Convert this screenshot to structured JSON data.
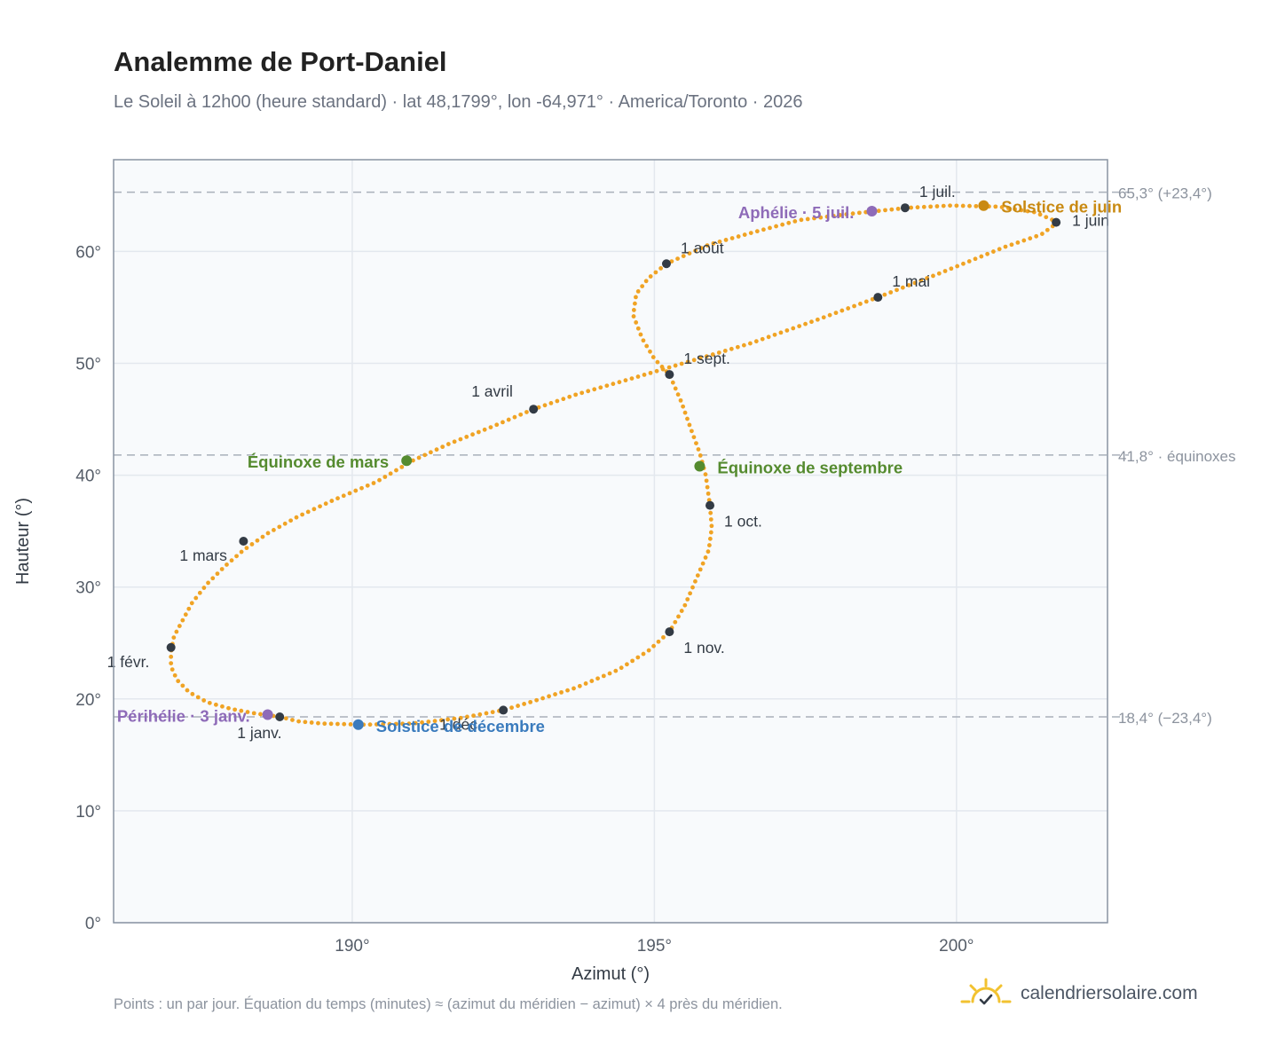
{
  "header": {
    "title": "Analemme de Port-Daniel",
    "subtitle": "Le Soleil à 12h00 (heure standard) · lat 48,1799°, lon -64,971° · America/Toronto · 2026"
  },
  "footer": {
    "note": "Points : un par jour. Équation du temps (minutes) ≈ (azimut du méridien − azimut) × 4 près du méridien.",
    "brand": "calendriersolaire.com"
  },
  "colors": {
    "path": "#f0a324",
    "month": "#333b45",
    "solstice_june": "#c98a12",
    "solstice_december": "#3a7bbd",
    "equinox": "#558b2f",
    "apsis": "#8e6bb8",
    "reference": "#a9b0ba",
    "plot_bg": "#f8fafc",
    "frame": "#8893a2",
    "grid": "#e3e8ee"
  },
  "chart_data": {
    "type": "scatter",
    "xlabel": "Azimut (°)",
    "ylabel": "Hauteur (°)",
    "xlim": [
      186.05,
      202.5
    ],
    "ylim": [
      0,
      68.2
    ],
    "x_ticks": [
      {
        "value": 190,
        "label": "190°"
      },
      {
        "value": 195,
        "label": "195°"
      },
      {
        "value": 200,
        "label": "200°"
      }
    ],
    "y_ticks": [
      {
        "value": 0,
        "label": "0°"
      },
      {
        "value": 10,
        "label": "10°"
      },
      {
        "value": 20,
        "label": "20°"
      },
      {
        "value": 30,
        "label": "30°"
      },
      {
        "value": 40,
        "label": "40°"
      },
      {
        "value": 50,
        "label": "50°"
      },
      {
        "value": 60,
        "label": "60°"
      }
    ],
    "grid": true,
    "reference_lines": [
      {
        "y": 65.3,
        "label": "65,3° (+23,4°)"
      },
      {
        "y": 41.8,
        "label": "41,8° · équinoxes"
      },
      {
        "y": 18.4,
        "label": "18,4° (−23,4°)"
      }
    ],
    "path_points": [
      [
        188.8,
        18.4
      ],
      [
        188.4,
        18.7
      ],
      [
        188.0,
        19.1
      ],
      [
        187.6,
        19.7
      ],
      [
        187.3,
        20.6
      ],
      [
        187.1,
        21.7
      ],
      [
        187.0,
        22.9
      ],
      [
        187.0,
        24.2
      ],
      [
        187.05,
        25.6
      ],
      [
        187.2,
        27.1
      ],
      [
        187.35,
        28.6
      ],
      [
        187.6,
        30.3
      ],
      [
        187.9,
        31.9
      ],
      [
        188.2,
        33.3
      ],
      [
        188.6,
        34.8
      ],
      [
        189.1,
        36.3
      ],
      [
        189.7,
        37.8
      ],
      [
        190.4,
        39.4
      ],
      [
        191.0,
        41.3
      ],
      [
        191.6,
        42.8
      ],
      [
        192.3,
        44.3
      ],
      [
        193.0,
        45.9
      ],
      [
        193.7,
        47.2
      ],
      [
        194.6,
        48.6
      ],
      [
        195.6,
        50.2
      ],
      [
        196.6,
        51.8
      ],
      [
        197.7,
        53.9
      ],
      [
        198.7,
        55.9
      ],
      [
        199.7,
        58.0
      ],
      [
        200.8,
        60.4
      ],
      [
        201.4,
        61.5
      ],
      [
        201.68,
        62.6
      ],
      [
        201.3,
        63.5
      ],
      [
        200.7,
        64.0
      ],
      [
        199.9,
        64.1
      ],
      [
        199.2,
        63.9
      ],
      [
        198.3,
        63.4
      ],
      [
        197.4,
        62.8
      ],
      [
        196.7,
        61.8
      ],
      [
        195.9,
        60.6
      ],
      [
        195.2,
        58.9
      ],
      [
        194.9,
        57.6
      ],
      [
        194.7,
        56.2
      ],
      [
        194.65,
        54.3
      ],
      [
        194.8,
        52.2
      ],
      [
        195.0,
        50.4
      ],
      [
        195.25,
        49.0
      ],
      [
        195.45,
        46.5
      ],
      [
        195.6,
        44.2
      ],
      [
        195.75,
        42.0
      ],
      [
        195.85,
        40.0
      ],
      [
        195.92,
        37.3
      ],
      [
        195.95,
        35.3
      ],
      [
        195.9,
        33.3
      ],
      [
        195.7,
        30.8
      ],
      [
        195.5,
        28.3
      ],
      [
        195.25,
        26.0
      ],
      [
        194.9,
        24.3
      ],
      [
        194.4,
        22.6
      ],
      [
        193.7,
        21.0
      ],
      [
        193.0,
        19.8
      ],
      [
        192.5,
        19.0
      ],
      [
        191.8,
        18.3
      ],
      [
        191.0,
        17.8
      ],
      [
        190.2,
        17.7
      ],
      [
        189.5,
        17.8
      ],
      [
        189.1,
        18.0
      ],
      [
        188.8,
        18.4
      ]
    ],
    "month_markers": [
      {
        "label": "1 janv.",
        "x": 188.8,
        "y": 18.4,
        "pos": "below"
      },
      {
        "label": "1 févr.",
        "x": 187.0,
        "y": 24.6,
        "pos": "below-left"
      },
      {
        "label": "1 mars",
        "x": 188.2,
        "y": 34.1,
        "pos": "below-left"
      },
      {
        "label": "1 avril",
        "x": 193.0,
        "y": 45.9,
        "pos": "above-left"
      },
      {
        "label": "1 mai",
        "x": 198.7,
        "y": 55.9,
        "pos": "above-right"
      },
      {
        "label": "1 juin",
        "x": 201.65,
        "y": 62.6,
        "pos": "above"
      },
      {
        "label": "1 juil.",
        "x": 199.15,
        "y": 63.9,
        "pos": "above-right"
      },
      {
        "label": "1 août",
        "x": 195.2,
        "y": 58.9,
        "pos": "above-right"
      },
      {
        "label": "1 sept.",
        "x": 195.25,
        "y": 49.0,
        "pos": "above-right"
      },
      {
        "label": "1 oct.",
        "x": 195.92,
        "y": 37.3,
        "pos": "below-right"
      },
      {
        "label": "1 nov.",
        "x": 195.25,
        "y": 26.0,
        "pos": "below-right"
      },
      {
        "label": "1 déc.",
        "x": 192.5,
        "y": 19.0,
        "pos": "below-left"
      }
    ],
    "events": [
      {
        "label": "Solstice de juin",
        "x": 200.45,
        "y": 64.1,
        "kind": "solstice_june",
        "pos": "right"
      },
      {
        "label": "Solstice de décembre",
        "x": 190.1,
        "y": 17.7,
        "kind": "solstice_december",
        "pos": "right"
      },
      {
        "label": "Équinoxe de mars",
        "x": 190.9,
        "y": 41.3,
        "kind": "equinox",
        "pos": "left"
      },
      {
        "label": "Équinoxe de septembre",
        "x": 195.75,
        "y": 40.8,
        "kind": "equinox",
        "pos": "right"
      },
      {
        "label": "Aphélie · 5 juil.",
        "x": 198.6,
        "y": 63.6,
        "kind": "apsis",
        "pos": "left"
      },
      {
        "label": "Périhélie · 3 janv.",
        "x": 188.6,
        "y": 18.6,
        "kind": "apsis",
        "pos": "left"
      }
    ]
  }
}
